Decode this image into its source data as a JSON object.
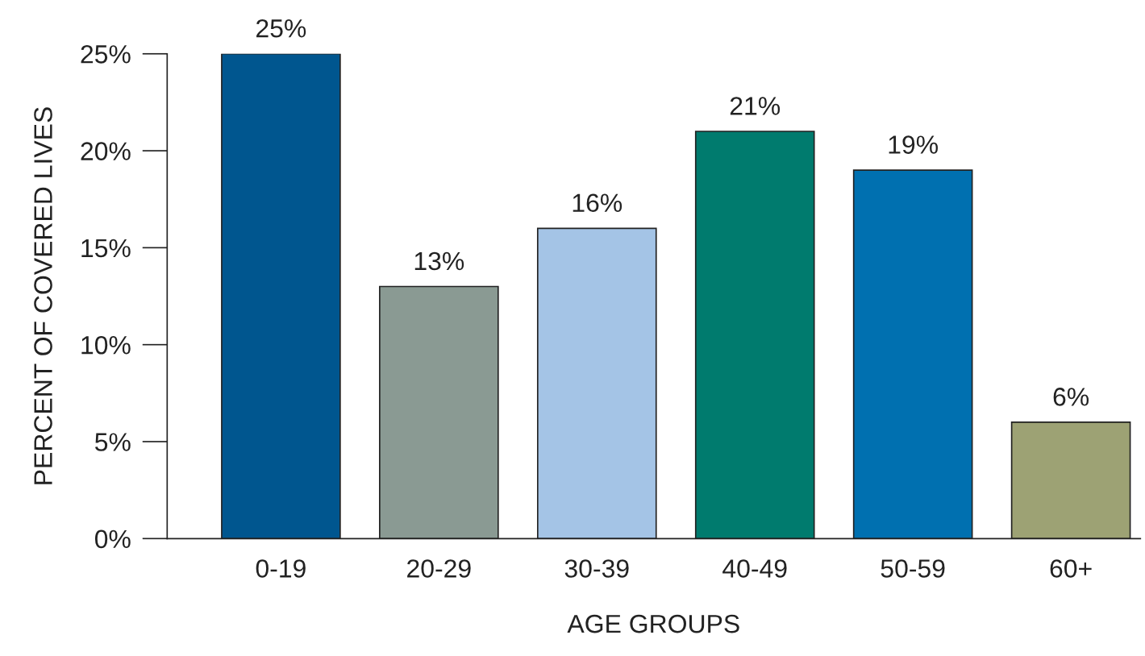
{
  "chart_data": {
    "type": "bar",
    "xlabel": "AGE GROUPS",
    "ylabel": "PERCENT OF COVERED LIVES",
    "categories": [
      "0-19",
      "20-29",
      "30-39",
      "40-49",
      "50-59",
      "60+"
    ],
    "values": [
      25,
      13,
      16,
      21,
      19,
      6
    ],
    "colors": [
      "#00568f",
      "#8a9a93",
      "#a4c4e6",
      "#007b6e",
      "#0070b0",
      "#9da274"
    ],
    "value_labels": [
      "25%",
      "13%",
      "16%",
      "21%",
      "19%",
      "6%"
    ],
    "ylim": [
      0,
      25
    ],
    "yticks": [
      {
        "value": 0,
        "label": "0%"
      },
      {
        "value": 5,
        "label": "5%"
      },
      {
        "value": 10,
        "label": "10%"
      },
      {
        "value": 15,
        "label": "15%"
      },
      {
        "value": 20,
        "label": "20%"
      },
      {
        "value": 25,
        "label": "25%"
      }
    ],
    "grid": false,
    "legend": false
  }
}
